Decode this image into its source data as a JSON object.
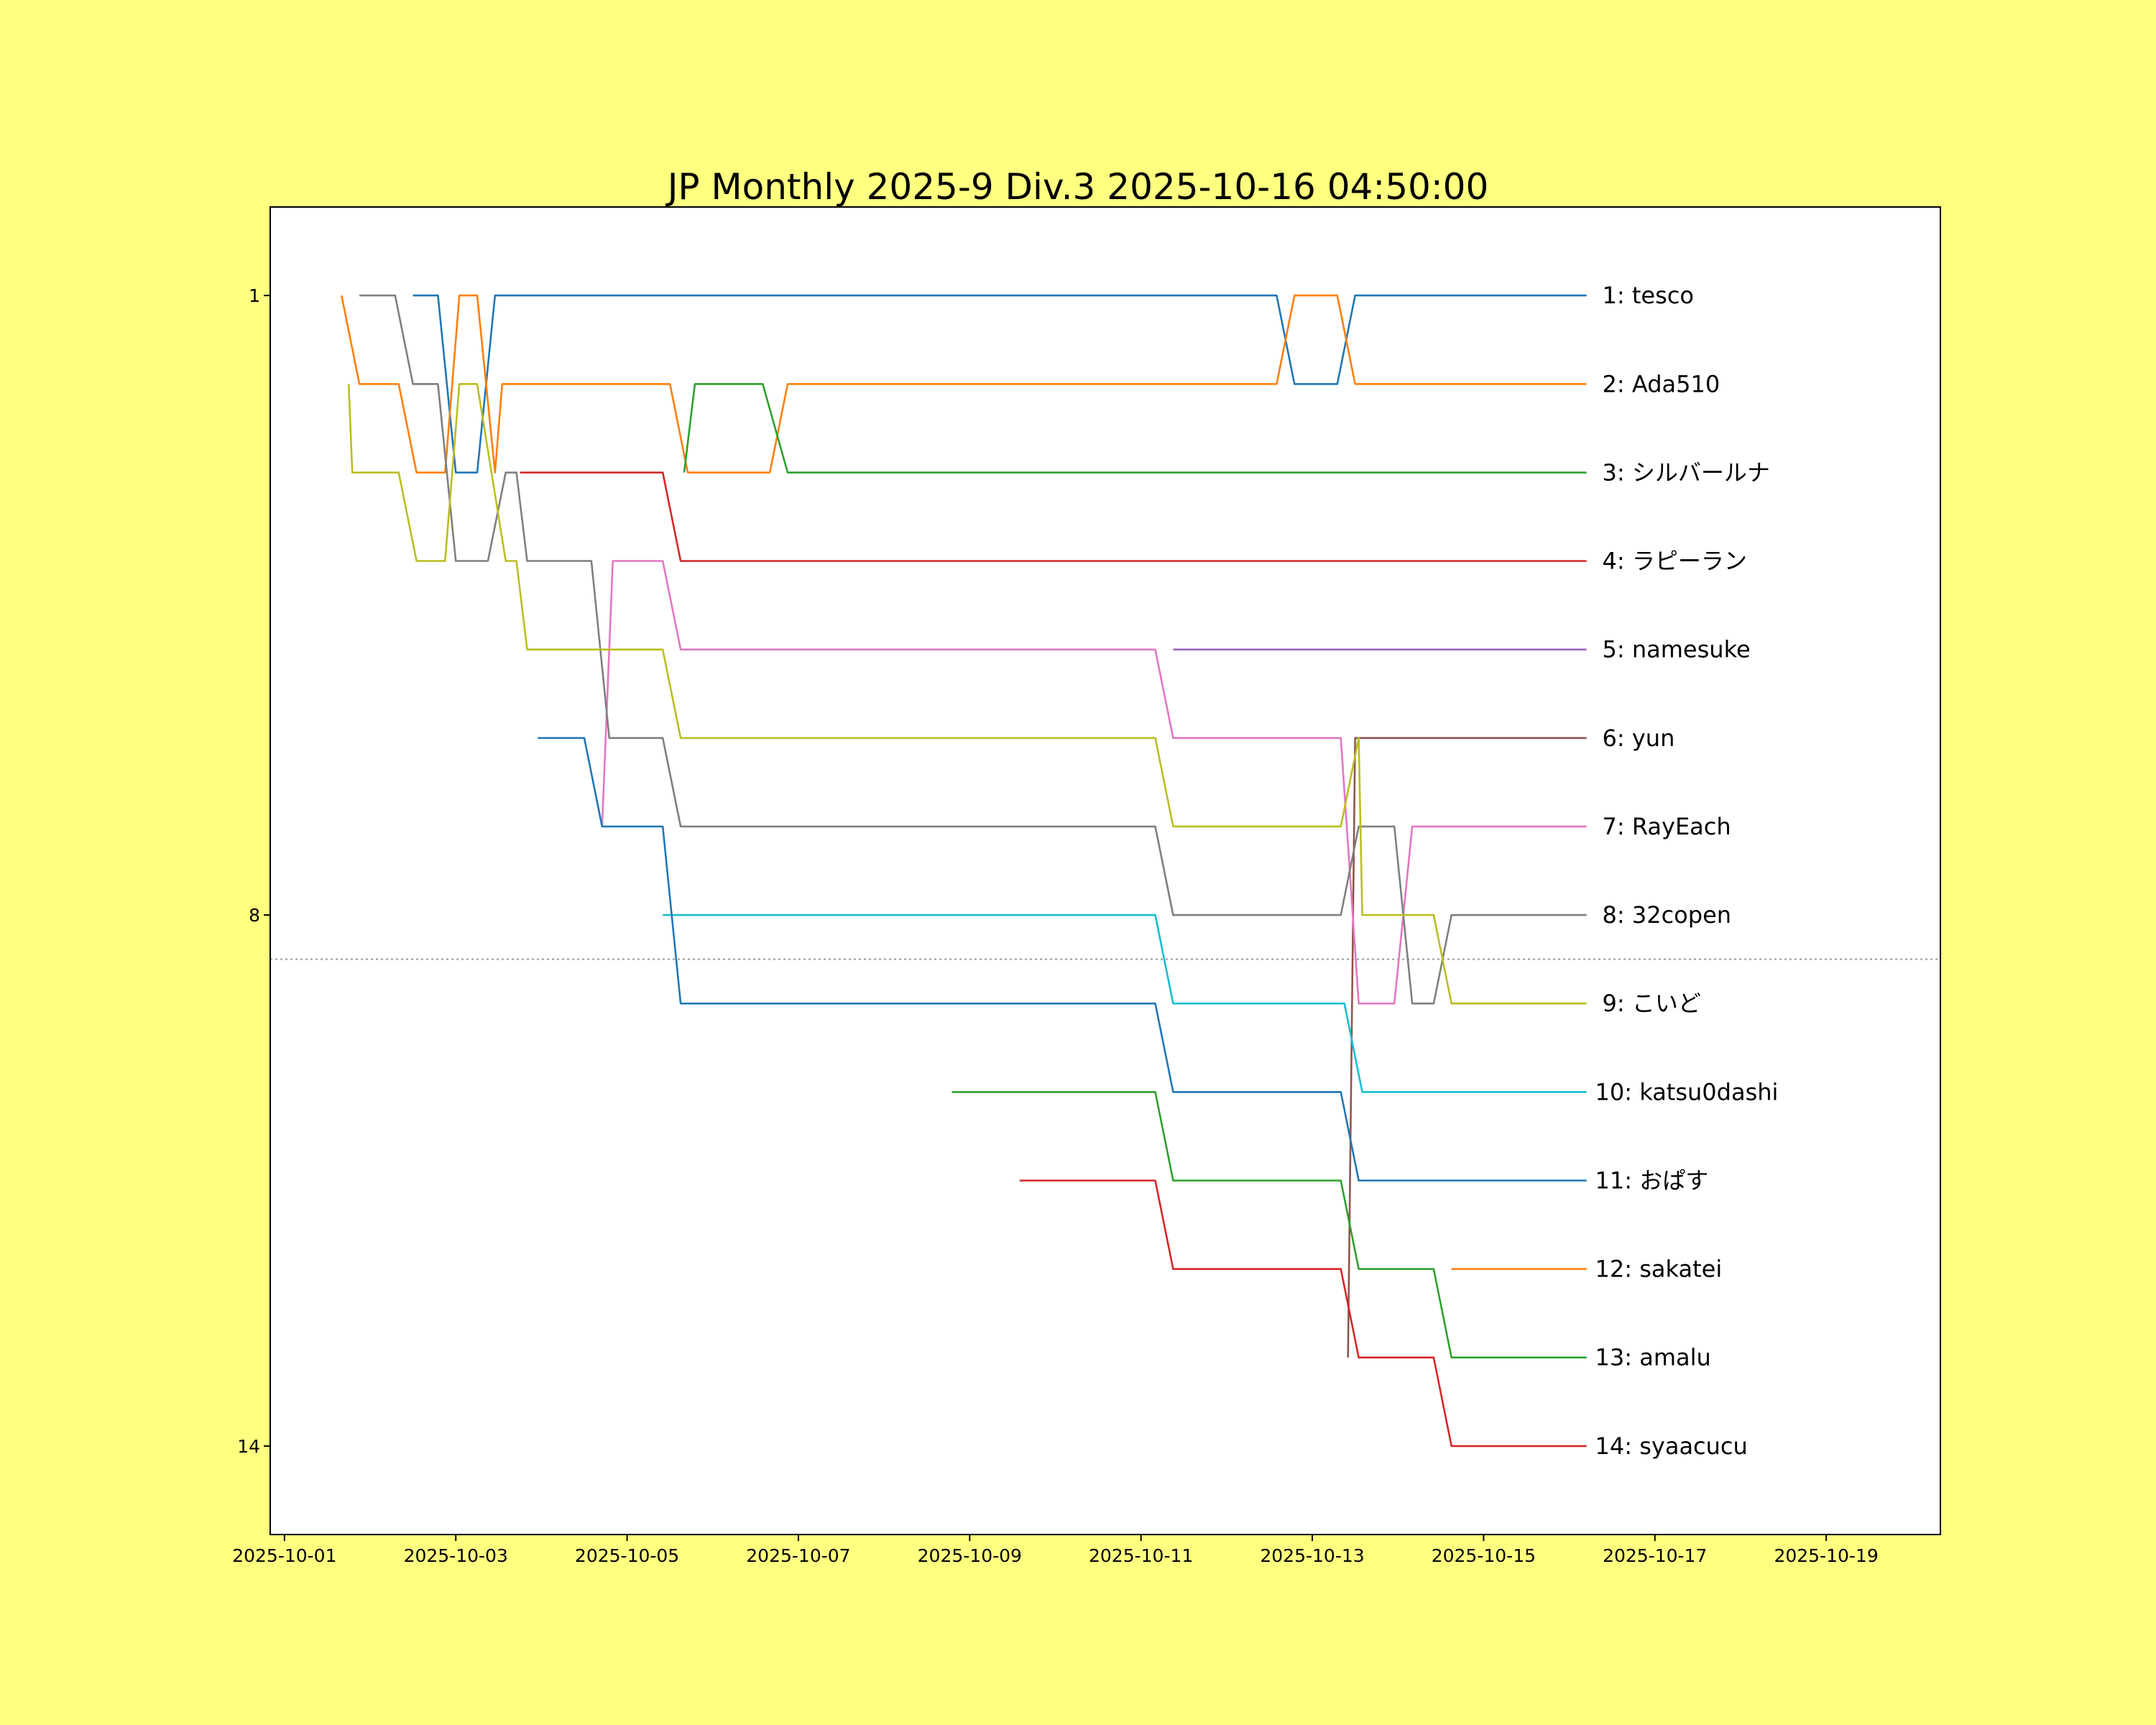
{
  "chart_data": {
    "type": "line",
    "title": "JP Monthly 2025-9 Div.3 2025-10-16 04:50:00",
    "xlabel": "",
    "ylabel": "",
    "xlim": [
      "2025-09-30 20:00",
      "2025-10-20 08:00"
    ],
    "ylim": [
      15.0,
      -0.0
    ],
    "y_inverted": true,
    "yticks": [
      1,
      8,
      14
    ],
    "xticks": [
      "2025-10-01",
      "2025-10-03",
      "2025-10-05",
      "2025-10-07",
      "2025-10-09",
      "2025-10-11",
      "2025-10-13",
      "2025-10-15",
      "2025-10-17",
      "2025-10-19"
    ],
    "grid": false,
    "legend": "none",
    "colors": {
      "background": "#ffff80",
      "plot_background": "#ffffff",
      "cutoff_line": "#999999"
    },
    "cutoff_rank": 8.5,
    "series": [
      {
        "label": "1: tesco",
        "color": "#1f77b4",
        "points": [
          [
            "2025-10-02 12:00",
            1
          ],
          [
            "2025-10-02 19:00",
            1
          ],
          [
            "2025-10-03 00:00",
            3
          ],
          [
            "2025-10-03 06:00",
            3
          ],
          [
            "2025-10-03 11:00",
            1
          ],
          [
            "2025-10-12 14:00",
            1
          ],
          [
            "2025-10-12 19:00",
            2
          ],
          [
            "2025-10-13 07:00",
            2
          ],
          [
            "2025-10-13 12:00",
            1
          ],
          [
            "2025-10-16 04:50",
            1
          ]
        ]
      },
      {
        "label": "2: Ada510",
        "color": "#ff7f0e",
        "points": [
          [
            "2025-10-01 16:00",
            1
          ],
          [
            "2025-10-01 21:00",
            2
          ],
          [
            "2025-10-02 08:00",
            2
          ],
          [
            "2025-10-02 13:00",
            3
          ],
          [
            "2025-10-02 21:00",
            3
          ],
          [
            "2025-10-03 01:00",
            1
          ],
          [
            "2025-10-03 06:00",
            1
          ],
          [
            "2025-10-03 11:00",
            3
          ],
          [
            "2025-10-03 13:00",
            2
          ],
          [
            "2025-10-05 12:00",
            2
          ],
          [
            "2025-10-05 17:00",
            3
          ],
          [
            "2025-10-06 16:00",
            3
          ],
          [
            "2025-10-06 21:00",
            2
          ],
          [
            "2025-10-12 14:00",
            2
          ],
          [
            "2025-10-12 19:00",
            1
          ],
          [
            "2025-10-13 07:00",
            1
          ],
          [
            "2025-10-13 12:00",
            2
          ],
          [
            "2025-10-16 04:50",
            2
          ]
        ]
      },
      {
        "label": "3: シルバールナ",
        "color": "#2ca02c",
        "points": [
          [
            "2025-10-05 16:00",
            3
          ],
          [
            "2025-10-05 19:00",
            2
          ],
          [
            "2025-10-06 14:00",
            2
          ],
          [
            "2025-10-06 21:00",
            3
          ],
          [
            "2025-10-16 04:50",
            3
          ]
        ]
      },
      {
        "label": "4: ラピーラン",
        "color": "#d62728",
        "points": [
          [
            "2025-10-03 18:00",
            3
          ],
          [
            "2025-10-05 10:00",
            3
          ],
          [
            "2025-10-05 15:00",
            4
          ],
          [
            "2025-10-16 04:50",
            4
          ]
        ]
      },
      {
        "label": "5: namesuke",
        "color": "#9467bd",
        "points": [
          [
            "2025-10-11 09:00",
            5
          ],
          [
            "2025-10-16 04:50",
            5
          ]
        ]
      },
      {
        "label": "6: yun",
        "color": "#8c564b",
        "points": [
          [
            "2025-10-13 10:00",
            13
          ],
          [
            "2025-10-13 12:00",
            6
          ],
          [
            "2025-10-16 04:50",
            6
          ]
        ]
      },
      {
        "label": "7: RayEach",
        "color": "#e377c2",
        "points": [
          [
            "2025-10-04 17:00",
            7
          ],
          [
            "2025-10-04 20:00",
            4
          ],
          [
            "2025-10-05 10:00",
            4
          ],
          [
            "2025-10-05 15:00",
            5
          ],
          [
            "2025-10-11 04:00",
            5
          ],
          [
            "2025-10-11 09:00",
            6
          ],
          [
            "2025-10-13 08:00",
            6
          ],
          [
            "2025-10-13 13:00",
            9
          ],
          [
            "2025-10-13 23:00",
            9
          ],
          [
            "2025-10-14 04:00",
            7
          ],
          [
            "2025-10-16 04:50",
            7
          ]
        ]
      },
      {
        "label": "8: 32copen",
        "color": "#7f7f7f",
        "points": [
          [
            "2025-10-01 21:00",
            1
          ],
          [
            "2025-10-02 07:00",
            1
          ],
          [
            "2025-10-02 12:00",
            2
          ],
          [
            "2025-10-02 19:00",
            2
          ],
          [
            "2025-10-03 00:00",
            4
          ],
          [
            "2025-10-03 09:00",
            4
          ],
          [
            "2025-10-03 14:00",
            3
          ],
          [
            "2025-10-03 17:00",
            3
          ],
          [
            "2025-10-03 20:00",
            4
          ],
          [
            "2025-10-04 14:00",
            4
          ],
          [
            "2025-10-04 19:00",
            6
          ],
          [
            "2025-10-05 10:00",
            6
          ],
          [
            "2025-10-05 15:00",
            7
          ],
          [
            "2025-10-11 04:00",
            7
          ],
          [
            "2025-10-11 09:00",
            8
          ],
          [
            "2025-10-13 08:00",
            8
          ],
          [
            "2025-10-13 13:00",
            7
          ],
          [
            "2025-10-13 23:00",
            7
          ],
          [
            "2025-10-14 04:00",
            9
          ],
          [
            "2025-10-14 10:00",
            9
          ],
          [
            "2025-10-14 15:00",
            8
          ],
          [
            "2025-10-16 04:50",
            8
          ]
        ]
      },
      {
        "label": "9: こいど",
        "color": "#bcbd22",
        "points": [
          [
            "2025-10-01 18:00",
            2
          ],
          [
            "2025-10-01 19:00",
            3
          ],
          [
            "2025-10-02 08:00",
            3
          ],
          [
            "2025-10-02 13:00",
            4
          ],
          [
            "2025-10-02 21:00",
            4
          ],
          [
            "2025-10-03 01:00",
            2
          ],
          [
            "2025-10-03 06:00",
            2
          ],
          [
            "2025-10-03 10:00",
            3
          ],
          [
            "2025-10-03 14:00",
            4
          ],
          [
            "2025-10-03 17:00",
            4
          ],
          [
            "2025-10-03 20:00",
            5
          ],
          [
            "2025-10-05 10:00",
            5
          ],
          [
            "2025-10-05 15:00",
            6
          ],
          [
            "2025-10-11 04:00",
            6
          ],
          [
            "2025-10-11 09:00",
            7
          ],
          [
            "2025-10-13 08:00",
            7
          ],
          [
            "2025-10-13 13:00",
            6
          ],
          [
            "2025-10-13 14:00",
            8
          ],
          [
            "2025-10-14 10:00",
            8
          ],
          [
            "2025-10-14 15:00",
            9
          ],
          [
            "2025-10-16 04:50",
            9
          ]
        ]
      },
      {
        "label": "10: katsu0dashi",
        "color": "#17becf",
        "points": [
          [
            "2025-10-05 10:00",
            8
          ],
          [
            "2025-10-11 04:00",
            8
          ],
          [
            "2025-10-11 09:00",
            9
          ],
          [
            "2025-10-13 09:00",
            9
          ],
          [
            "2025-10-13 14:00",
            10
          ],
          [
            "2025-10-16 04:50",
            10
          ]
        ]
      },
      {
        "label": "11: おぱす",
        "color": "#1f77b4",
        "points": [
          [
            "2025-10-03 23:00",
            6
          ],
          [
            "2025-10-04 12:00",
            6
          ],
          [
            "2025-10-04 17:00",
            7
          ],
          [
            "2025-10-05 10:00",
            7
          ],
          [
            "2025-10-05 15:00",
            9
          ],
          [
            "2025-10-11 04:00",
            9
          ],
          [
            "2025-10-11 09:00",
            10
          ],
          [
            "2025-10-13 08:00",
            10
          ],
          [
            "2025-10-13 13:00",
            11
          ],
          [
            "2025-10-16 04:50",
            11
          ]
        ]
      },
      {
        "label": "12: sakatei",
        "color": "#ff7f0e",
        "points": [
          [
            "2025-10-14 15:00",
            12
          ],
          [
            "2025-10-16 04:50",
            12
          ]
        ]
      },
      {
        "label": "13: amalu",
        "color": "#2ca02c",
        "points": [
          [
            "2025-10-08 19:00",
            10
          ],
          [
            "2025-10-11 04:00",
            10
          ],
          [
            "2025-10-11 09:00",
            11
          ],
          [
            "2025-10-13 08:00",
            11
          ],
          [
            "2025-10-13 13:00",
            12
          ],
          [
            "2025-10-14 10:00",
            12
          ],
          [
            "2025-10-14 15:00",
            13
          ],
          [
            "2025-10-16 04:50",
            13
          ]
        ]
      },
      {
        "label": "14: syaacucu",
        "color": "#d62728",
        "points": [
          [
            "2025-10-09 14:00",
            11
          ],
          [
            "2025-10-11 04:00",
            11
          ],
          [
            "2025-10-11 09:00",
            12
          ],
          [
            "2025-10-13 08:00",
            12
          ],
          [
            "2025-10-13 13:00",
            13
          ],
          [
            "2025-10-14 10:00",
            13
          ],
          [
            "2025-10-14 15:00",
            14
          ],
          [
            "2025-10-16 04:50",
            14
          ]
        ]
      }
    ]
  }
}
